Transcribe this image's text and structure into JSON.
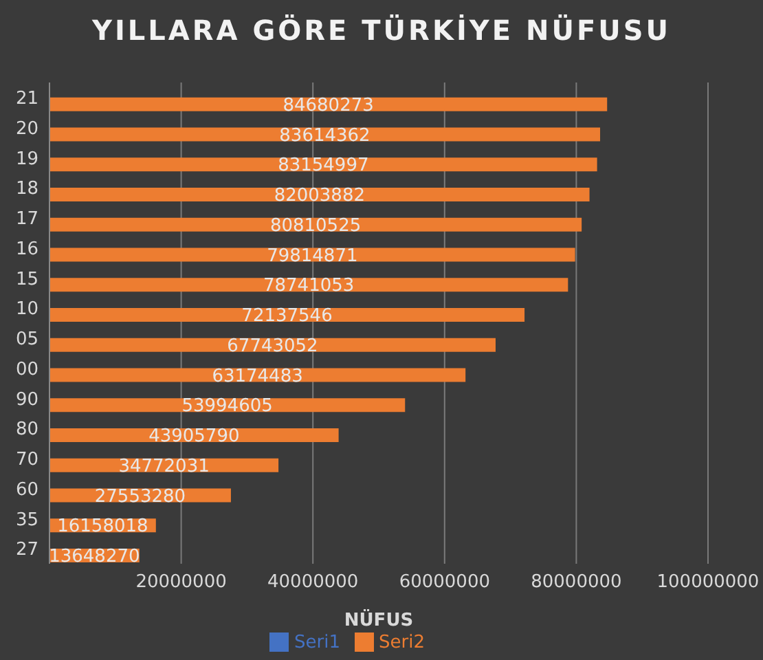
{
  "chart_data": {
    "type": "bar",
    "orientation": "horizontal",
    "title": "YILLARA GÖRE TÜRKİYE NÜFUSU",
    "xlabel": "NÜFUS",
    "categories": [
      "21",
      "20",
      "19",
      "18",
      "17",
      "16",
      "15",
      "10",
      "05",
      "00",
      "90",
      "80",
      "70",
      "60",
      "35",
      "27"
    ],
    "series": [
      {
        "name": "Seri1",
        "color": "#4472c4",
        "values": [
          null,
          null,
          null,
          null,
          null,
          null,
          null,
          null,
          null,
          null,
          null,
          null,
          null,
          null,
          null,
          null
        ]
      },
      {
        "name": "Seri2",
        "color": "#ed7d31",
        "values": [
          84680273,
          83614362,
          83154997,
          82003882,
          80810525,
          79814871,
          78741053,
          72137546,
          67743052,
          63174483,
          53994605,
          43905790,
          34772031,
          27553280,
          16158018,
          13648270
        ]
      }
    ],
    "xlim": [
      0,
      100000000
    ],
    "xticks": [
      {
        "value": 0,
        "label": null
      },
      20000000,
      40000000,
      60000000,
      80000000,
      100000000
    ],
    "grid": "x",
    "legend": "bottom",
    "data_labels": true
  }
}
